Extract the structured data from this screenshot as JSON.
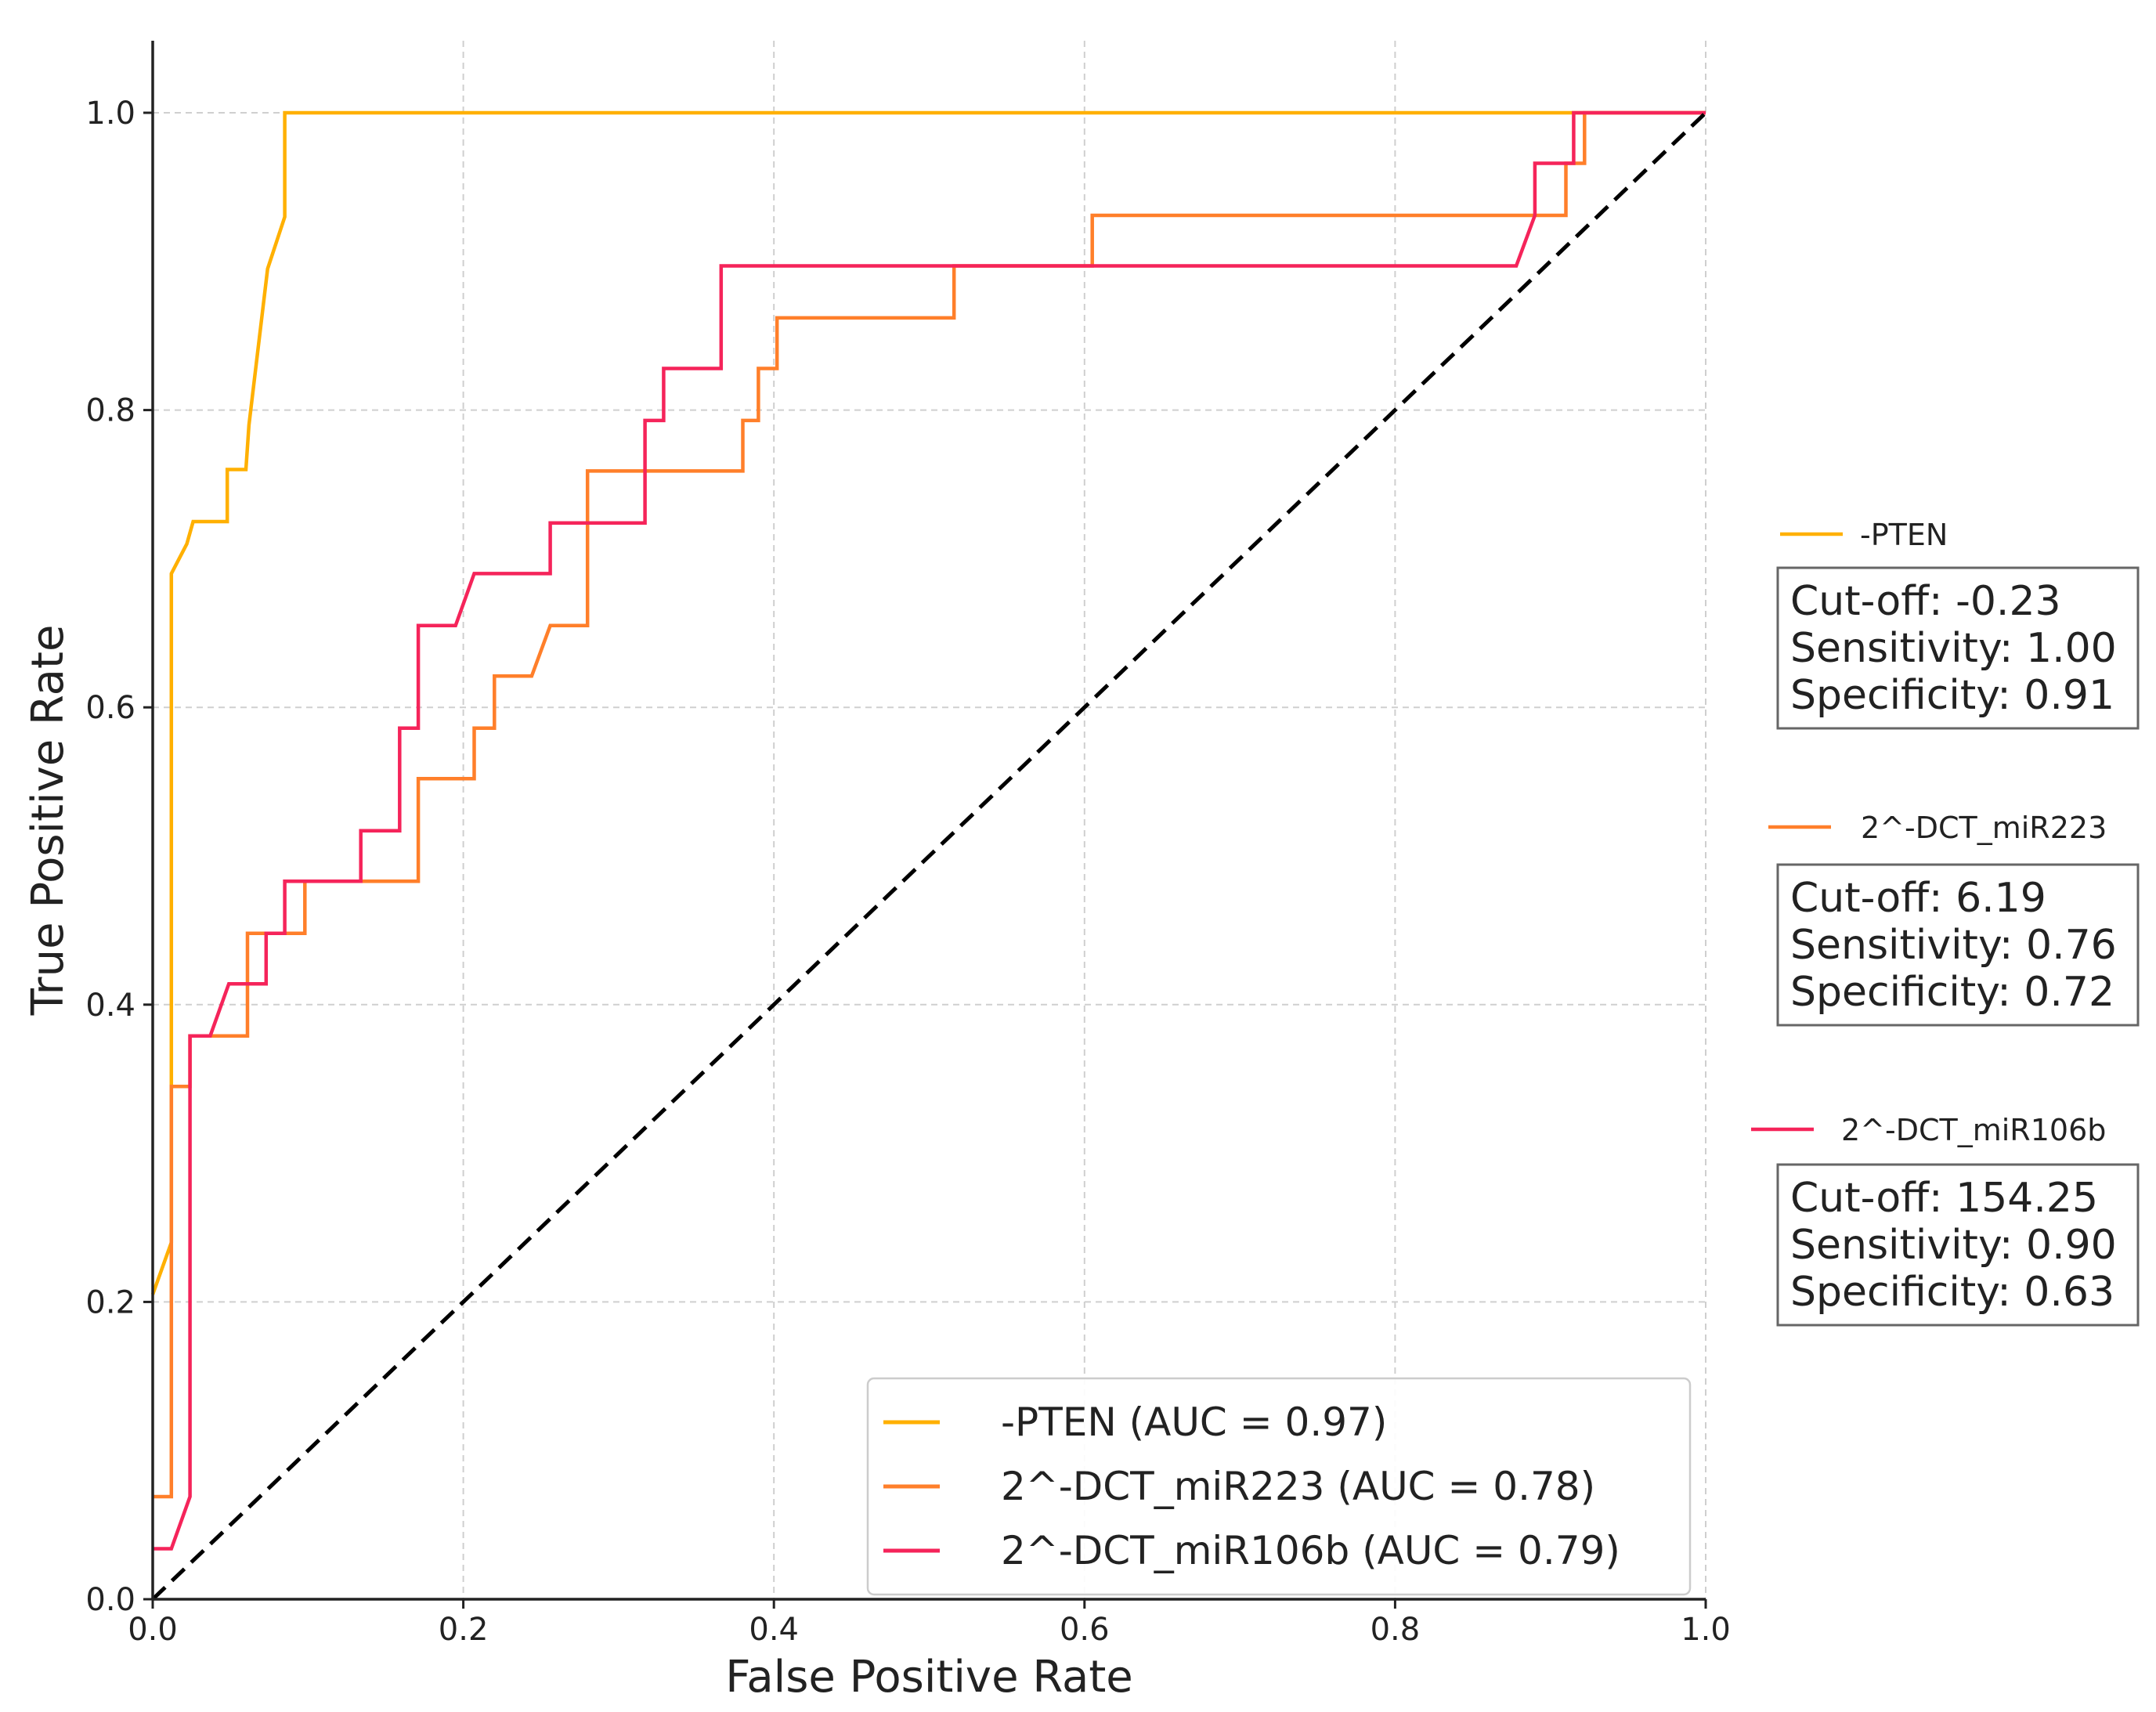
{
  "chart_data": {
    "type": "line",
    "title": "",
    "xlabel": "False Positive Rate",
    "ylabel": "True Positive Rate",
    "xlim": [
      0.0,
      1.0
    ],
    "ylim": [
      0.0,
      1.0
    ],
    "xticks": [
      "0.0",
      "0.2",
      "0.4",
      "0.6",
      "0.8",
      "1.0"
    ],
    "yticks": [
      "0.0",
      "0.2",
      "0.4",
      "0.6",
      "0.8",
      "1.0"
    ],
    "grid": true,
    "legend_position": "lower-right",
    "series": [
      {
        "name": "-PTEN",
        "legend_label": "-PTEN (AUC = 0.97)",
        "auc": 0.97,
        "color": "#FFB000",
        "cutoff_text": "Cut-off: -0.23",
        "sensitivity_text": "Sensitivity: 1.00",
        "specificity_text": "Specificity: 0.91",
        "points": [
          [
            0.0,
            0.205
          ],
          [
            0.012,
            0.24
          ],
          [
            0.012,
            0.69
          ],
          [
            0.022,
            0.71
          ],
          [
            0.026,
            0.725
          ],
          [
            0.048,
            0.725
          ],
          [
            0.048,
            0.76
          ],
          [
            0.06,
            0.76
          ],
          [
            0.062,
            0.79
          ],
          [
            0.074,
            0.895
          ],
          [
            0.085,
            0.93
          ],
          [
            0.085,
            1.0
          ],
          [
            1.0,
            1.0
          ]
        ]
      },
      {
        "name": "2^-DCT_miR223",
        "legend_label": "2^-DCT_miR223 (AUC = 0.78)",
        "auc": 0.78,
        "color": "#FF7F2A",
        "cutoff_text": "Cut-off: 6.19",
        "sensitivity_text": "Sensitivity: 0.76",
        "specificity_text": "Specificity: 0.72",
        "points": [
          [
            0.0,
            0.069
          ],
          [
            0.012,
            0.069
          ],
          [
            0.012,
            0.345
          ],
          [
            0.024,
            0.345
          ],
          [
            0.024,
            0.379
          ],
          [
            0.061,
            0.379
          ],
          [
            0.061,
            0.448
          ],
          [
            0.098,
            0.448
          ],
          [
            0.098,
            0.483
          ],
          [
            0.171,
            0.483
          ],
          [
            0.171,
            0.552
          ],
          [
            0.207,
            0.552
          ],
          [
            0.207,
            0.586
          ],
          [
            0.22,
            0.586
          ],
          [
            0.22,
            0.621
          ],
          [
            0.244,
            0.621
          ],
          [
            0.256,
            0.655
          ],
          [
            0.28,
            0.655
          ],
          [
            0.28,
            0.759
          ],
          [
            0.38,
            0.759
          ],
          [
            0.38,
            0.793
          ],
          [
            0.39,
            0.793
          ],
          [
            0.39,
            0.828
          ],
          [
            0.402,
            0.828
          ],
          [
            0.402,
            0.862
          ],
          [
            0.516,
            0.862
          ],
          [
            0.516,
            0.897
          ],
          [
            0.605,
            0.897
          ],
          [
            0.605,
            0.931
          ],
          [
            0.91,
            0.931
          ],
          [
            0.91,
            0.966
          ],
          [
            0.922,
            0.966
          ],
          [
            0.922,
            1.0
          ],
          [
            1.0,
            1.0
          ]
        ]
      },
      {
        "name": "2^-DCT_miR106b",
        "legend_label": "2^-DCT_miR106b (AUC = 0.79)",
        "auc": 0.79,
        "color": "#F5245A",
        "cutoff_text": "Cut-off: 154.25",
        "sensitivity_text": "Sensitivity: 0.90",
        "specificity_text": "Specificity: 0.63",
        "points": [
          [
            0.0,
            0.034
          ],
          [
            0.012,
            0.034
          ],
          [
            0.024,
            0.069
          ],
          [
            0.024,
            0.379
          ],
          [
            0.037,
            0.379
          ],
          [
            0.049,
            0.414
          ],
          [
            0.073,
            0.414
          ],
          [
            0.073,
            0.448
          ],
          [
            0.085,
            0.448
          ],
          [
            0.085,
            0.483
          ],
          [
            0.134,
            0.483
          ],
          [
            0.134,
            0.517
          ],
          [
            0.159,
            0.517
          ],
          [
            0.159,
            0.586
          ],
          [
            0.171,
            0.586
          ],
          [
            0.171,
            0.655
          ],
          [
            0.195,
            0.655
          ],
          [
            0.207,
            0.69
          ],
          [
            0.256,
            0.69
          ],
          [
            0.256,
            0.724
          ],
          [
            0.317,
            0.724
          ],
          [
            0.317,
            0.793
          ],
          [
            0.329,
            0.793
          ],
          [
            0.329,
            0.828
          ],
          [
            0.366,
            0.828
          ],
          [
            0.366,
            0.897
          ],
          [
            0.878,
            0.897
          ],
          [
            0.89,
            0.931
          ],
          [
            0.89,
            0.966
          ],
          [
            0.915,
            0.966
          ],
          [
            0.915,
            1.0
          ],
          [
            1.0,
            1.0
          ]
        ]
      },
      {
        "name": "chance",
        "color": "#000000",
        "dashed": true,
        "points": [
          [
            0.0,
            0.0
          ],
          [
            1.0,
            1.0
          ]
        ]
      }
    ]
  }
}
